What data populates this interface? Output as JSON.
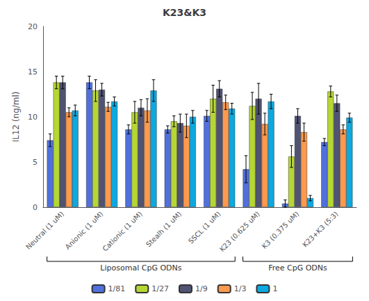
{
  "chart_data": {
    "type": "bar",
    "title": "K23&K3",
    "ylabel": "IL12 (ng/ml)",
    "categories": [
      "Neutral (1 uM)",
      "Anionic (1 uM)",
      "Cationic (1 uM)",
      "Stealh (1 uM)",
      "SSCL (1 uM)",
      "K23 (0.625 uM)",
      "K3 (0.375 uM)",
      "K23+K3 (5:3)"
    ],
    "series": [
      {
        "name": "1/81",
        "values": [
          7.4,
          13.8,
          8.6,
          8.6,
          10.1,
          4.2,
          0.4,
          7.2
        ],
        "errors": [
          0.7,
          0.7,
          0.5,
          0.4,
          0.6,
          1.5,
          0.4,
          0.4
        ]
      },
      {
        "name": "1/27",
        "values": [
          13.8,
          12.9,
          10.5,
          9.5,
          12.0,
          11.2,
          5.6,
          12.8
        ],
        "errors": [
          0.7,
          1.2,
          1.2,
          0.6,
          1.5,
          1.5,
          1.2,
          0.6
        ]
      },
      {
        "name": "1/9",
        "values": [
          13.8,
          13.0,
          11.0,
          9.3,
          13.1,
          12.0,
          10.1,
          11.5
        ],
        "errors": [
          0.7,
          0.7,
          0.9,
          1.0,
          0.9,
          1.7,
          0.8,
          0.9
        ]
      },
      {
        "name": "1/3",
        "values": [
          10.5,
          11.1,
          10.7,
          9.0,
          11.6,
          9.2,
          8.3,
          8.6
        ],
        "errors": [
          0.5,
          0.5,
          1.3,
          1.3,
          0.8,
          1.2,
          1.0,
          0.5
        ]
      },
      {
        "name": "1",
        "values": [
          10.7,
          11.7,
          12.9,
          10.0,
          10.9,
          11.7,
          1.0,
          9.9
        ],
        "errors": [
          0.6,
          0.5,
          1.2,
          0.7,
          0.6,
          0.8,
          0.3,
          0.5
        ]
      }
    ],
    "annotations": [
      {
        "text": "Liposomal CpG ODNs",
        "from": "Neutral (1 uM)",
        "to": "SSCL (1 uM)"
      },
      {
        "text": "Free CpG ODNs",
        "from": "K23 (0.625 uM)",
        "to": "K23+K3 (5:3)"
      }
    ],
    "ylim": [
      0,
      20
    ],
    "yticks": [
      0,
      5,
      10,
      15,
      20
    ],
    "grid": false,
    "legend": "bottom"
  }
}
